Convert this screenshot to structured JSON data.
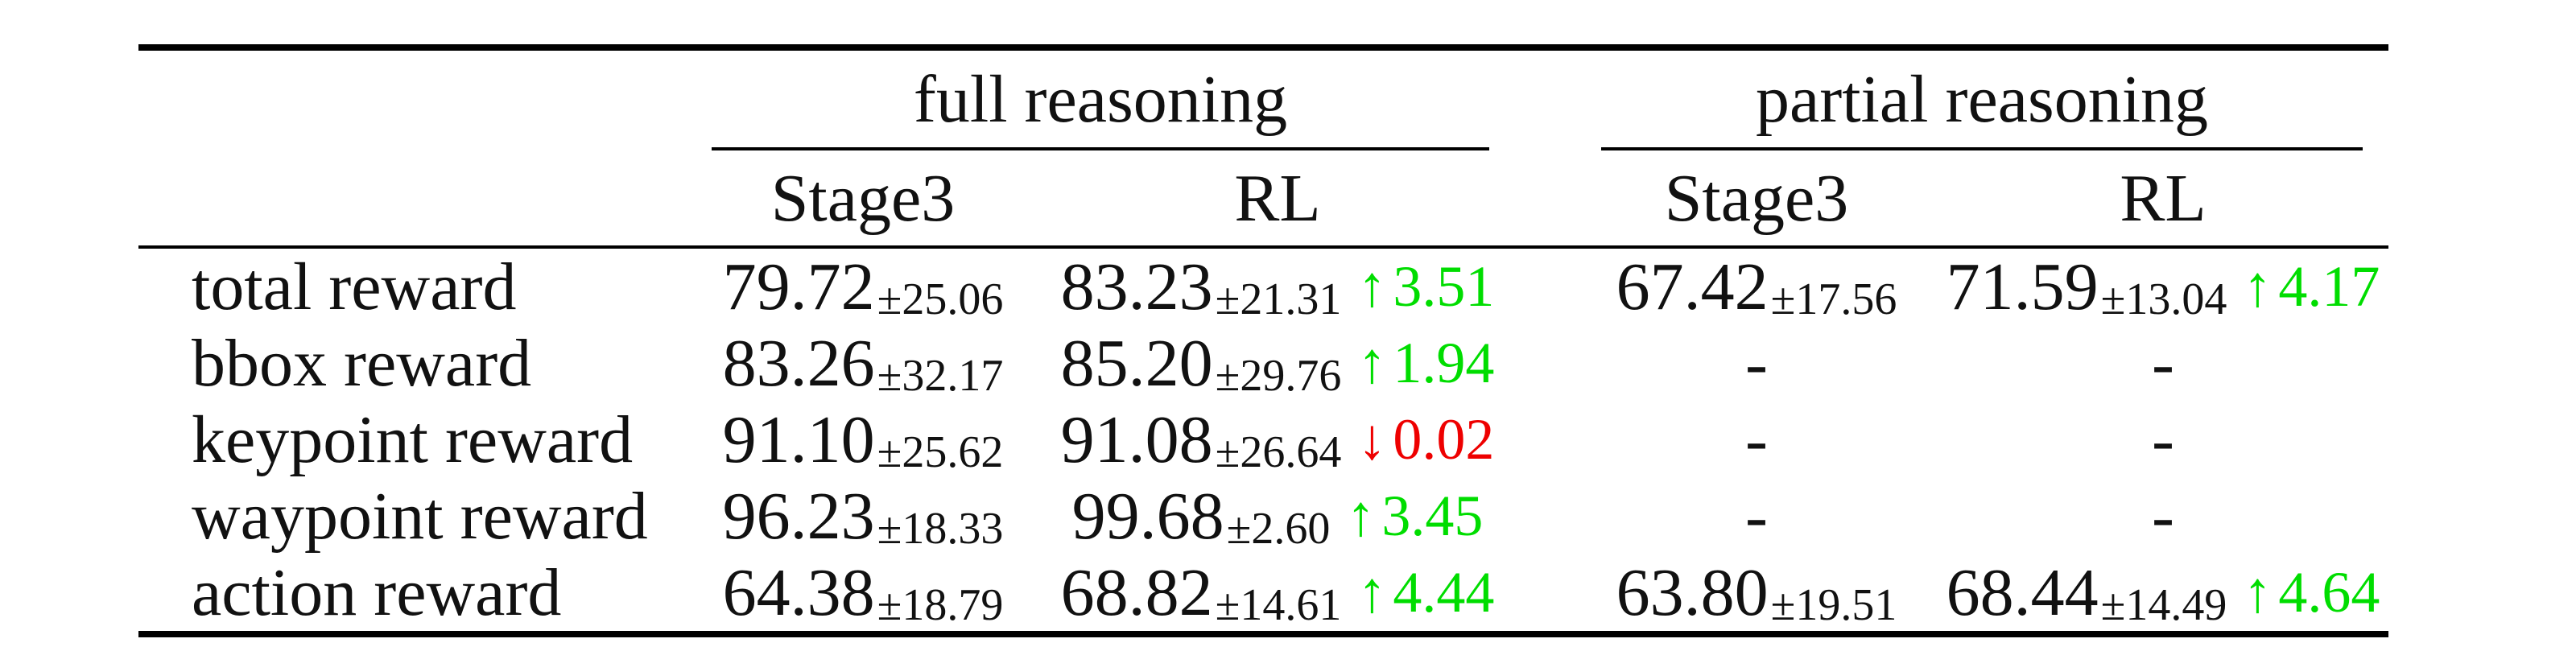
{
  "table": {
    "groups": [
      {
        "label": "full reasoning"
      },
      {
        "label": "partial reasoning"
      }
    ],
    "sub_headers": [
      {
        "label": "Stage3"
      },
      {
        "label": "RL"
      },
      {
        "label": "Stage3"
      },
      {
        "label": "RL"
      }
    ],
    "rows": [
      {
        "label": "total reward",
        "cells": [
          {
            "value": "79.72",
            "std": "±25.06"
          },
          {
            "value": "83.23",
            "std": "±21.31",
            "arrow": "↑",
            "delta": "3.51",
            "direction": "up"
          },
          {
            "value": "67.42",
            "std": "±17.56"
          },
          {
            "value": "71.59",
            "std": "±13.04",
            "arrow": "↑",
            "delta": "4.17",
            "direction": "up"
          }
        ]
      },
      {
        "label": "bbox reward",
        "cells": [
          {
            "value": "83.26",
            "std": "±32.17"
          },
          {
            "value": "85.20",
            "std": "±29.76",
            "arrow": "↑",
            "delta": "1.94",
            "direction": "up"
          },
          {
            "value": "-"
          },
          {
            "value": "-"
          }
        ]
      },
      {
        "label": "keypoint reward",
        "cells": [
          {
            "value": "91.10",
            "std": "±25.62"
          },
          {
            "value": "91.08",
            "std": "±26.64",
            "arrow": "↓",
            "delta": "0.02",
            "direction": "down"
          },
          {
            "value": "-"
          },
          {
            "value": "-"
          }
        ]
      },
      {
        "label": "waypoint reward",
        "cells": [
          {
            "value": "96.23",
            "std": "±18.33"
          },
          {
            "value": "99.68",
            "std": "±2.60",
            "arrow": "↑",
            "delta": "3.45",
            "direction": "up"
          },
          {
            "value": "-"
          },
          {
            "value": "-"
          }
        ]
      },
      {
        "label": "action reward",
        "cells": [
          {
            "value": "64.38",
            "std": "±18.79"
          },
          {
            "value": "68.82",
            "std": "±14.61",
            "arrow": "↑",
            "delta": "4.44",
            "direction": "up"
          },
          {
            "value": "63.80",
            "std": "±19.51"
          },
          {
            "value": "68.44",
            "std": "±14.49",
            "arrow": "↑",
            "delta": "4.64",
            "direction": "up"
          }
        ]
      }
    ]
  },
  "colors": {
    "increase_green": "#00dd00",
    "decrease_red": "#ee0000",
    "text": "#111111",
    "rules": "#000000",
    "background": "#ffffff"
  },
  "icons": {
    "up_arrow": "↑",
    "down_arrow": "↓"
  }
}
